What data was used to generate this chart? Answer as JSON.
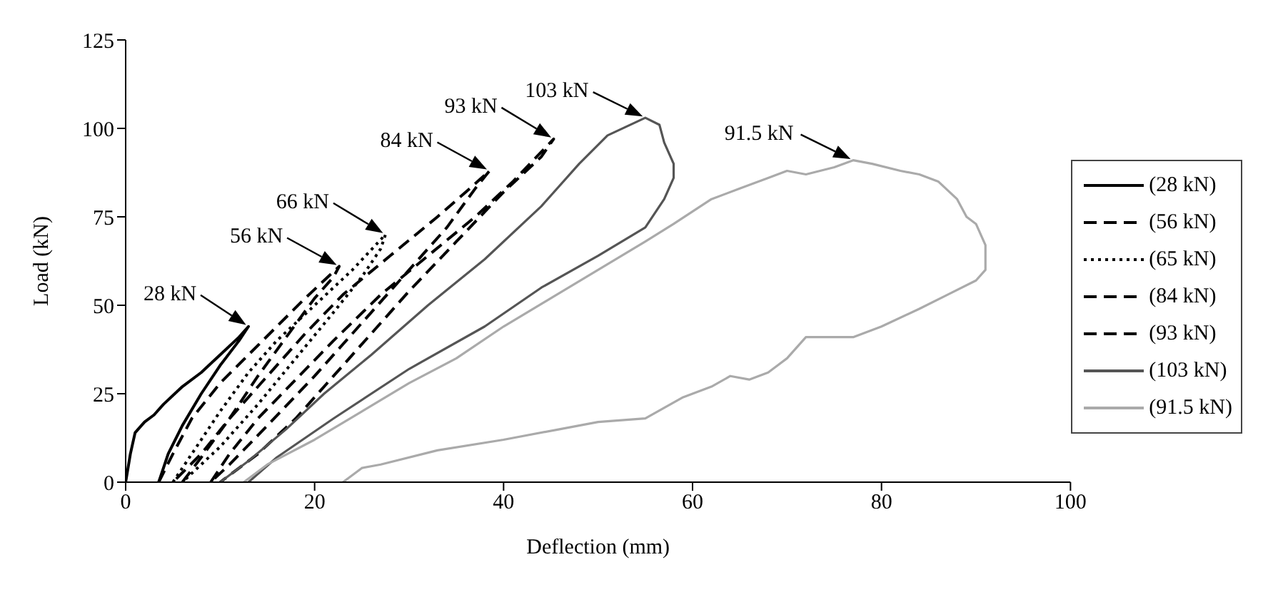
{
  "chart_data": {
    "type": "line",
    "xlabel": "Deflection (mm)",
    "ylabel": "Load (kN)",
    "xlim": [
      0,
      100
    ],
    "xticks": [
      0,
      20,
      40,
      60,
      80,
      100
    ],
    "ylim": [
      0,
      125
    ],
    "yticks": [
      0,
      25,
      50,
      75,
      100,
      125
    ],
    "grid": false,
    "legend": "right",
    "marker": "none",
    "series": [
      {
        "name": "(28 kN)",
        "color": "#000000",
        "line_style": "solid",
        "x": [
          0,
          0.5,
          1,
          2,
          3,
          4,
          6,
          8,
          10,
          12,
          13,
          12,
          10,
          8,
          6,
          4.5,
          3.5
        ],
        "values": [
          0,
          8,
          14,
          17,
          19,
          22,
          27,
          31,
          36,
          41,
          44,
          40,
          33,
          25,
          16,
          8,
          0
        ]
      },
      {
        "name": "(56 kN)",
        "color": "#000000",
        "line_style": "dashed",
        "x": [
          3.5,
          5,
          7,
          10,
          13,
          16,
          19,
          22.6,
          22,
          20,
          17,
          14,
          11,
          8,
          5
        ],
        "values": [
          0,
          8,
          18,
          28,
          36,
          44,
          52,
          61,
          58,
          52,
          41,
          30,
          18,
          8,
          0
        ]
      },
      {
        "name": "(65 kN)",
        "color": "#000000",
        "line_style": "dotted",
        "x": [
          5,
          7,
          10,
          13,
          16,
          20,
          24,
          27.5,
          27,
          25,
          22,
          18,
          14,
          10,
          6
        ],
        "values": [
          0,
          8,
          20,
          31,
          40,
          50,
          60,
          70,
          66,
          58,
          48,
          35,
          22,
          10,
          0
        ]
      },
      {
        "name": "(84 kN)",
        "color": "#000000",
        "line_style": "dashed",
        "x": [
          6,
          8,
          11,
          15,
          19,
          23,
          28,
          33,
          36,
          38.5,
          37,
          34,
          30,
          25,
          20,
          15,
          11,
          9
        ],
        "values": [
          0,
          7,
          18,
          30,
          42,
          53,
          64,
          75,
          82,
          88,
          83,
          72,
          60,
          45,
          30,
          16,
          5,
          0
        ]
      },
      {
        "name": "(93 kN)",
        "color": "#000000",
        "line_style": "dashed",
        "x": [
          9,
          11,
          14,
          18,
          22,
          27,
          32,
          37,
          41,
          45.3,
          44,
          40,
          35,
          30,
          26,
          22,
          18,
          14,
          10
        ],
        "values": [
          0,
          8,
          18,
          29,
          40,
          53,
          64,
          75,
          85,
          97,
          92,
          82,
          68,
          54,
          42,
          30,
          18,
          8,
          0
        ]
      },
      {
        "name": "(103 kN)",
        "color": "#555555",
        "line_style": "solid",
        "x": [
          10,
          13,
          17,
          21,
          26,
          32,
          38,
          44,
          48,
          51,
          55,
          56.5,
          57,
          58,
          58,
          57,
          55,
          50,
          44,
          38,
          30,
          22,
          16,
          13
        ],
        "values": [
          0,
          6,
          15,
          25,
          36,
          50,
          63,
          78,
          90,
          98,
          103,
          101,
          96,
          90,
          86,
          80,
          72,
          64,
          55,
          44,
          32,
          18,
          7,
          0
        ]
      },
      {
        "name": "(91.5 kN)",
        "color": "#aaaaaa",
        "line_style": "solid",
        "x": [
          12.5,
          15,
          20,
          25,
          30,
          35,
          40,
          45,
          50,
          55,
          58,
          62,
          65,
          68,
          70,
          72,
          75,
          77,
          79,
          82,
          84,
          86,
          88,
          89,
          90,
          91,
          91,
          90,
          87,
          84,
          80,
          77,
          72,
          70,
          68,
          66,
          64,
          62,
          59,
          55,
          50,
          46,
          40,
          33,
          27,
          25,
          23
        ],
        "values": [
          0,
          5,
          12,
          20,
          28,
          35,
          44,
          52,
          60,
          68,
          73,
          80,
          83,
          86,
          88,
          87,
          89,
          91,
          90,
          88,
          87,
          85,
          80,
          75,
          73,
          67,
          60,
          57,
          53,
          49,
          44,
          41,
          41,
          35,
          31,
          29,
          30,
          27,
          24,
          18,
          17,
          15,
          12,
          9,
          5,
          4,
          0
        ]
      }
    ],
    "annotations": [
      {
        "text": "28 kN",
        "x": 13,
        "y": 44
      },
      {
        "text": "56 kN",
        "x": 22.6,
        "y": 61
      },
      {
        "text": "66 kN",
        "x": 27.5,
        "y": 70
      },
      {
        "text": "84 kN",
        "x": 38.5,
        "y": 88
      },
      {
        "text": "93 kN",
        "x": 45.3,
        "y": 97
      },
      {
        "text": "103 kN",
        "x": 55,
        "y": 103
      },
      {
        "text": "91.5 kN",
        "x": 77,
        "y": 91
      }
    ]
  }
}
